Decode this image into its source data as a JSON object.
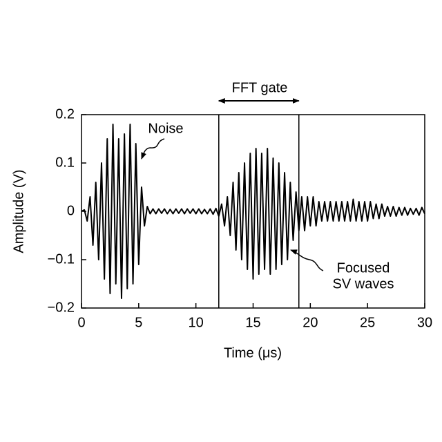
{
  "chart_data": {
    "type": "line",
    "xlabel": "Time (μs)",
    "ylabel": "Amplitude (V)",
    "xlim": [
      0,
      30
    ],
    "xticks": [
      0,
      5,
      10,
      15,
      20,
      25,
      30
    ],
    "ylim": [
      -0.2,
      0.2
    ],
    "yticks": [
      {
        "value": -0.2,
        "label": "−0.2"
      },
      {
        "value": -0.1,
        "label": "−0.1"
      },
      0,
      0.1,
      0.2
    ],
    "color": "#000000",
    "gate": [
      12,
      19
    ],
    "annotations": {
      "gate": "FFT gate",
      "noise": "Noise",
      "focused": [
        "Focused",
        "SV waves"
      ]
    },
    "x": [
      0,
      0.25,
      0.5,
      0.75,
      1,
      1.25,
      1.5,
      1.75,
      2,
      2.25,
      2.5,
      2.75,
      3,
      3.25,
      3.5,
      3.75,
      4,
      4.25,
      4.5,
      4.75,
      5,
      5.25,
      5.5,
      5.75,
      6,
      6.25,
      6.5,
      6.75,
      7,
      7.25,
      7.5,
      7.75,
      8,
      8.25,
      8.5,
      8.75,
      9,
      9.25,
      9.5,
      9.75,
      10,
      10.25,
      10.5,
      10.75,
      11,
      11.25,
      11.5,
      11.75,
      12,
      12.25,
      12.5,
      12.75,
      13,
      13.25,
      13.5,
      13.75,
      14,
      14.25,
      14.5,
      14.75,
      15,
      15.25,
      15.5,
      15.75,
      16,
      16.25,
      16.5,
      16.75,
      17,
      17.25,
      17.5,
      17.75,
      18,
      18.25,
      18.5,
      18.75,
      19,
      19.25,
      19.5,
      19.75,
      20,
      20.25,
      20.5,
      20.75,
      21,
      21.25,
      21.5,
      21.75,
      22,
      22.25,
      22.5,
      22.75,
      23,
      23.25,
      23.5,
      23.75,
      24,
      24.25,
      24.5,
      24.75,
      25,
      25.25,
      25.5,
      25.75,
      26,
      26.25,
      26.5,
      26.75,
      27,
      27.25,
      27.5,
      27.75,
      28,
      28.25,
      28.5,
      28.75,
      29,
      29.25,
      29.5,
      29.75,
      30
    ],
    "values": [
      0,
      0.003,
      -0.02,
      0.03,
      -0.07,
      0.06,
      -0.1,
      0.1,
      -0.14,
      0.15,
      -0.17,
      0.18,
      -0.15,
      0.15,
      -0.18,
      0.16,
      -0.16,
      0.18,
      -0.15,
      0.14,
      -0.11,
      0.05,
      -0.03,
      0.01,
      -0.005,
      0.005,
      -0.005,
      0.005,
      -0.004,
      0.005,
      -0.005,
      0.004,
      -0.005,
      0.005,
      -0.004,
      0.005,
      -0.005,
      0.005,
      -0.004,
      0.005,
      -0.005,
      0.005,
      -0.005,
      0.004,
      -0.005,
      0.005,
      -0.006,
      0.006,
      -0.01,
      0.015,
      -0.03,
      0.03,
      -0.05,
      0.06,
      -0.08,
      0.08,
      -0.1,
      0.1,
      -0.12,
      0.12,
      -0.14,
      0.13,
      -0.13,
      0.12,
      -0.12,
      0.13,
      -0.13,
      0.11,
      -0.12,
      0.1,
      -0.11,
      0.08,
      -0.1,
      0.06,
      -0.06,
      0.04,
      -0.04,
      0.03,
      -0.04,
      0.03,
      -0.03,
      0.03,
      -0.03,
      0.02,
      -0.02,
      0.02,
      -0.02,
      0.02,
      -0.02,
      0.02,
      -0.02,
      0.02,
      -0.02,
      0.02,
      -0.02,
      0.025,
      -0.02,
      0.02,
      -0.02,
      0.02,
      -0.02,
      0.02,
      -0.015,
      0.015,
      -0.015,
      0.015,
      -0.01,
      0.01,
      -0.01,
      0.01,
      -0.01,
      0.008,
      -0.008,
      0.008,
      -0.008,
      0.006,
      -0.006,
      0.006,
      -0.008,
      0.008,
      -0.005
    ]
  }
}
